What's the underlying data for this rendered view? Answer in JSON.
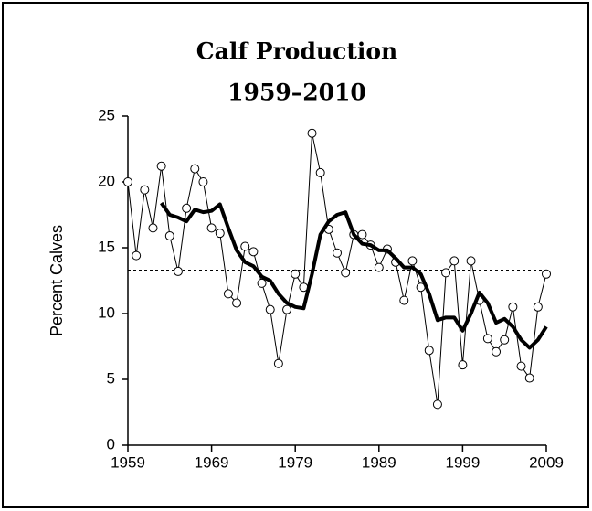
{
  "chart_data": {
    "type": "line",
    "title": "Calf Production",
    "subtitle": "1959–2010",
    "y_label": "Percent Calves",
    "xlim": [
      1959,
      2009
    ],
    "xticks": [
      1959,
      1969,
      1979,
      1989,
      1999,
      2009
    ],
    "ylim": [
      0,
      25
    ],
    "yticks": [
      0,
      5,
      10,
      15,
      20,
      25
    ],
    "reference_line": 13.3,
    "series": [
      {
        "color": "#000000",
        "marker": true,
        "x": [
          1959,
          1960,
          1961,
          1962,
          1963,
          1964,
          1965,
          1966,
          1967,
          1968,
          1969,
          1970,
          1971,
          1972,
          1973,
          1974,
          1975,
          1976,
          1977,
          1978,
          1979,
          1980,
          1981,
          1982,
          1983,
          1984,
          1985,
          1986,
          1987,
          1988,
          1989,
          1990,
          1991,
          1992,
          1993,
          1994,
          1995,
          1996,
          1997,
          1998,
          1999,
          2000,
          2001,
          2002,
          2003,
          2004,
          2005,
          2006,
          2007,
          2008,
          2009
        ],
        "values": [
          20.0,
          14.4,
          19.4,
          16.5,
          21.2,
          15.9,
          13.2,
          18.0,
          21.0,
          20.0,
          16.5,
          16.1,
          11.5,
          10.8,
          15.1,
          14.7,
          12.3,
          10.3,
          6.2,
          10.3,
          13.0,
          12.0,
          23.7,
          20.7,
          16.4,
          14.6,
          13.1,
          16.0,
          16.0,
          15.2,
          13.5,
          14.9,
          13.9,
          11.0,
          14.0,
          12.0,
          7.2,
          3.1,
          13.1,
          14.0,
          6.1,
          14.0,
          11.0,
          8.1,
          7.1,
          8.0,
          10.5,
          6.0,
          5.1,
          10.5,
          13.0
        ]
      },
      {
        "color": "#000000",
        "marker": false,
        "x": [
          1963,
          1964,
          1965,
          1966,
          1967,
          1968,
          1969,
          1970,
          1971,
          1972,
          1973,
          1974,
          1975,
          1976,
          1977,
          1978,
          1979,
          1980,
          1981,
          1982,
          1983,
          1984,
          1985,
          1986,
          1987,
          1988,
          1989,
          1990,
          1991,
          1992,
          1993,
          1994,
          1995,
          1996,
          1997,
          1998,
          1999,
          2000,
          2001,
          2002,
          2003,
          2004,
          2005,
          2006,
          2007,
          2008,
          2009
        ],
        "values": [
          18.4,
          17.5,
          17.3,
          17.0,
          17.9,
          17.7,
          17.8,
          18.3,
          16.5,
          14.8,
          13.9,
          13.6,
          12.8,
          12.5,
          11.5,
          10.8,
          10.5,
          10.4,
          13.0,
          16.0,
          17.0,
          17.5,
          17.7,
          16.0,
          15.3,
          15.2,
          14.8,
          14.8,
          14.2,
          13.5,
          13.5,
          13.0,
          11.5,
          9.5,
          9.7,
          9.7,
          8.7,
          10.0,
          11.6,
          10.8,
          9.3,
          9.6,
          9.0,
          8.0,
          7.4,
          8.0,
          9.0
        ]
      }
    ]
  }
}
